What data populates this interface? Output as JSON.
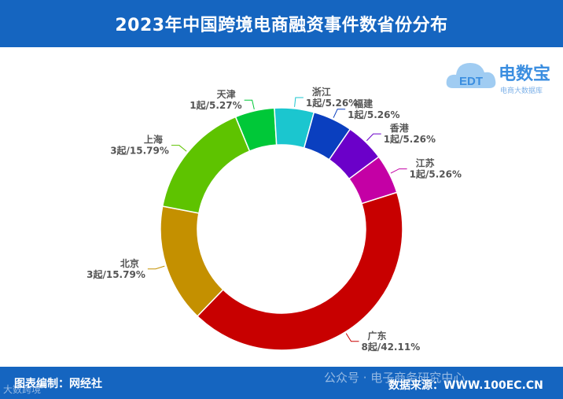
{
  "header": {
    "title": "2023年中国跨境电商融资事件数省份分布"
  },
  "logo": {
    "brand": "电数宝",
    "mark_text": "EDT",
    "subtitle": "电商大数据库"
  },
  "footer": {
    "editor": "图表编制：网经社",
    "source": "数据来源：WWW.100EC.CN",
    "wechat": "公众号 · 电子商务研究中心",
    "watermark": "大数跨境"
  },
  "chart_data": {
    "type": "pie",
    "subtype": "donut",
    "title": "2023年中国跨境电商融资事件数省份分布",
    "unit": "起",
    "series": [
      {
        "name": "天津",
        "value": 1,
        "percent": "5.27%",
        "label": "1起/5.27%",
        "color": "#00c838"
      },
      {
        "name": "浙江",
        "value": 1,
        "percent": "5.26%",
        "label": "1起/5.26%",
        "color": "#1bc6cf"
      },
      {
        "name": "福建",
        "value": 1,
        "percent": "5.26%",
        "label": "1起/5.26%",
        "color": "#0a3fbf"
      },
      {
        "name": "香港",
        "value": 1,
        "percent": "5.26%",
        "label": "1起/5.26%",
        "color": "#6b00c9"
      },
      {
        "name": "江苏",
        "value": 1,
        "percent": "5.26%",
        "label": "1起/5.26%",
        "color": "#c400a5"
      },
      {
        "name": "广东",
        "value": 8,
        "percent": "42.11%",
        "label": "8起/42.11%",
        "color": "#c80000"
      },
      {
        "name": "北京",
        "value": 3,
        "percent": "15.79%",
        "label": "3起/15.79%",
        "color": "#c49000"
      },
      {
        "name": "上海",
        "value": 3,
        "percent": "15.79%",
        "label": "3起/15.79%",
        "color": "#5ec300"
      }
    ]
  }
}
